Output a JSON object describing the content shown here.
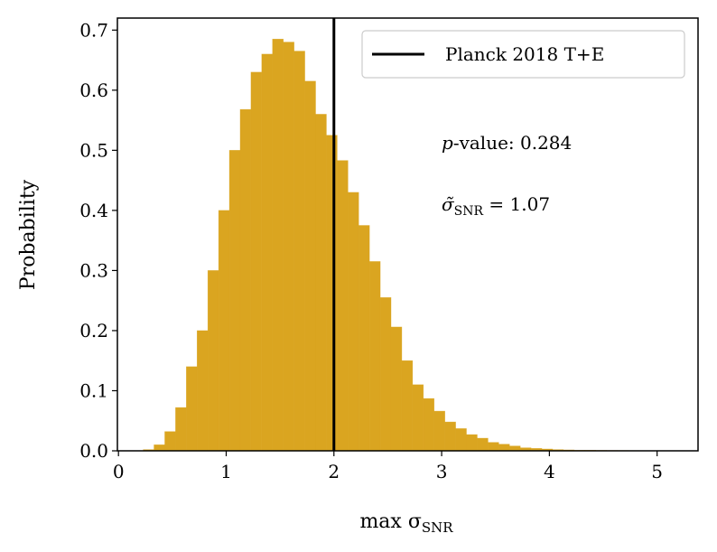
{
  "chart_data": {
    "type": "histogram",
    "xlabel": {
      "main": "max σ",
      "subscript": "SNR"
    },
    "ylabel": "Probability",
    "bins": [
      0.23,
      0.33,
      0.43,
      0.53,
      0.63,
      0.73,
      0.83,
      0.93,
      1.03,
      1.13,
      1.23,
      1.33,
      1.43,
      1.53,
      1.63,
      1.73,
      1.83,
      1.93,
      2.03,
      2.13,
      2.23,
      2.33,
      2.43,
      2.53,
      2.63,
      2.73,
      2.83,
      2.93,
      3.03,
      3.13,
      3.23,
      3.33,
      3.43,
      3.53,
      3.63,
      3.73,
      3.83,
      3.93,
      4.03,
      4.13,
      4.23,
      4.33,
      4.43,
      4.53,
      4.63,
      4.73,
      4.83,
      4.93,
      5.03,
      5.13,
      5.23
    ],
    "values": [
      0.002,
      0.01,
      0.032,
      0.072,
      0.14,
      0.2,
      0.3,
      0.4,
      0.5,
      0.568,
      0.63,
      0.66,
      0.685,
      0.68,
      0.665,
      0.615,
      0.56,
      0.525,
      0.483,
      0.43,
      0.375,
      0.315,
      0.255,
      0.206,
      0.15,
      0.11,
      0.087,
      0.066,
      0.048,
      0.037,
      0.027,
      0.021,
      0.014,
      0.011,
      0.008,
      0.005,
      0.004,
      0.003,
      0.002,
      0.0015,
      0.001,
      0.001,
      0.0008,
      0.0006,
      0.0005,
      0.0004,
      0.0003,
      0.0002,
      0.0002,
      0.0001
    ],
    "color": "#daa520",
    "xlim": [
      -0.01,
      5.38
    ],
    "ylim": [
      0,
      0.72
    ],
    "xticks": [
      0,
      1,
      2,
      3,
      4,
      5
    ],
    "yticks": [
      {
        "value": 0,
        "label": "0.0"
      },
      0.1,
      0.2,
      0.3,
      0.4,
      0.5,
      0.6,
      0.7
    ],
    "vlines": [
      {
        "x": 2,
        "label": "Planck 2018 T+E",
        "color": "#000000"
      }
    ],
    "legend": "upper right",
    "annotations": [
      {
        "italic": "p",
        "text": "-value: 0.284"
      },
      {
        "main": "σ̃",
        "subscript": "SNR",
        "text": " = 1.07"
      }
    ]
  }
}
